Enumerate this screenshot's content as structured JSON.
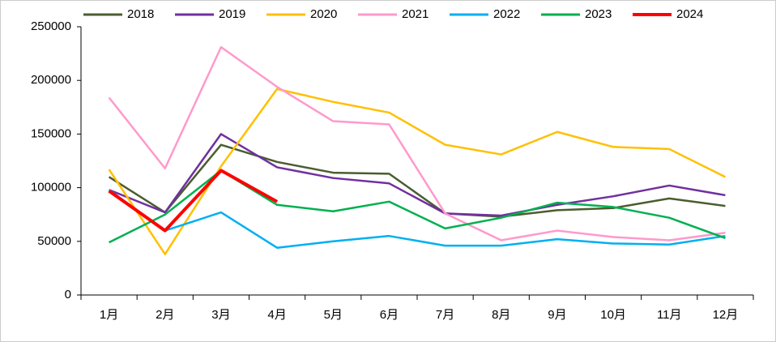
{
  "chart_data": {
    "type": "line",
    "categories": [
      "1月",
      "2月",
      "3月",
      "4月",
      "5月",
      "6月",
      "7月",
      "8月",
      "9月",
      "10月",
      "11月",
      "12月"
    ],
    "series": [
      {
        "name": "2018",
        "color": "#4b5d2f",
        "values": [
          110000,
          77000,
          140000,
          124000,
          114000,
          113000,
          76000,
          73000,
          79000,
          81000,
          90000,
          83000
        ]
      },
      {
        "name": "2019",
        "color": "#7030a0",
        "values": [
          98000,
          77000,
          150000,
          119000,
          109000,
          104000,
          76000,
          74000,
          84000,
          92000,
          102000,
          93000
        ]
      },
      {
        "name": "2020",
        "color": "#ffc000",
        "values": [
          117000,
          38000,
          120000,
          192000,
          180000,
          170000,
          140000,
          131000,
          152000,
          138000,
          136000,
          110000
        ]
      },
      {
        "name": "2021",
        "color": "#ff99cc",
        "values": [
          184000,
          118000,
          231000,
          194000,
          162000,
          159000,
          76000,
          51000,
          60000,
          54000,
          51000,
          58000
        ]
      },
      {
        "name": "2022",
        "color": "#00b0f0",
        "values": [
          98000,
          60000,
          77000,
          44000,
          50000,
          55000,
          46000,
          46000,
          52000,
          48000,
          47000,
          55000
        ]
      },
      {
        "name": "2023",
        "color": "#00b050",
        "values": [
          49000,
          75000,
          116000,
          84000,
          78000,
          87000,
          62000,
          72000,
          86000,
          82000,
          72000,
          53000
        ]
      },
      {
        "name": "2024",
        "color": "#ff0000",
        "values": [
          97000,
          60000,
          116000,
          87000,
          null,
          null,
          null,
          null,
          null,
          null,
          null,
          null
        ]
      }
    ],
    "ylim": [
      0,
      250000
    ],
    "yticks": [
      0,
      50000,
      100000,
      150000,
      200000,
      250000
    ]
  }
}
